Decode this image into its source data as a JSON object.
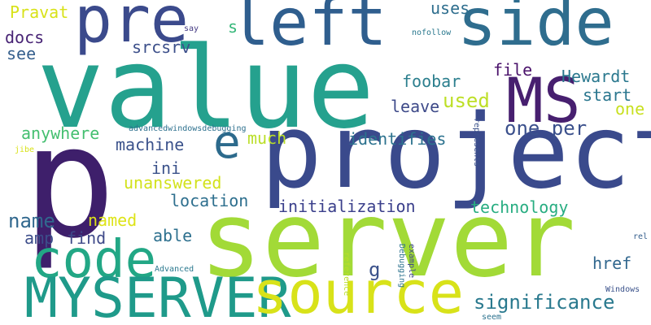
{
  "palette": {
    "teal": "#25a18e",
    "navy": "#3b3f8c",
    "blue": "#2c6a8c",
    "steel": "#32638d",
    "purple": "#471f6f",
    "green": "#4fc46a",
    "lime": "#9ddd33",
    "yellow": "#d8e219",
    "sea": "#1f9a8a"
  },
  "words": [
    {
      "text": "value",
      "color": "#25a18e"
    },
    {
      "text": "p",
      "color": "#3e1f6b"
    },
    {
      "text": "left",
      "color": "#2f5e8e"
    },
    {
      "text": "side",
      "color": "#2f6d8e"
    },
    {
      "text": "pre",
      "color": "#3b4a8c"
    },
    {
      "text": "project",
      "color": "#3a4a8c"
    },
    {
      "text": "server",
      "color": "#a2da37"
    },
    {
      "text": "code",
      "color": "#22a785"
    },
    {
      "text": "MYSERVER",
      "color": "#1f9a8a"
    },
    {
      "text": "source",
      "color": "#d8e219"
    },
    {
      "text": "MS",
      "color": "#471f6f"
    },
    {
      "text": "e",
      "color": "#2c6a8c"
    },
    {
      "text": "significance",
      "color": "#29798e"
    },
    {
      "text": "initialization",
      "color": "#3a3f8b"
    },
    {
      "text": "one per",
      "color": "#3b508c"
    },
    {
      "text": "technology",
      "color": "#27ad81"
    },
    {
      "text": "identifies",
      "color": "#2c728e"
    },
    {
      "text": "unanswered",
      "color": "#d2e21b"
    },
    {
      "text": "location",
      "color": "#2e6f8e"
    },
    {
      "text": "machine",
      "color": "#3b528b"
    },
    {
      "text": "used",
      "color": "#bddf26"
    },
    {
      "text": "foobar",
      "color": "#2c7f8e"
    },
    {
      "text": "Hewardt",
      "color": "#2a788e"
    },
    {
      "text": "start",
      "color": "#2a768e"
    },
    {
      "text": "leave",
      "color": "#3e4a89"
    },
    {
      "text": "one",
      "color": "#c8e020"
    },
    {
      "text": "file",
      "color": "#4a126b"
    },
    {
      "text": "anywhere",
      "color": "#44bf70"
    },
    {
      "text": "much",
      "color": "#bade28"
    },
    {
      "text": "ini",
      "color": "#3b528b"
    },
    {
      "text": "name",
      "color": "#31688e"
    },
    {
      "text": "named",
      "color": "#dde318"
    },
    {
      "text": "amp",
      "color": "#3c4d8a"
    },
    {
      "text": "find",
      "color": "#3e4989"
    },
    {
      "text": "able",
      "color": "#2d708e"
    },
    {
      "text": "href",
      "color": "#31678e"
    },
    {
      "text": "g",
      "color": "#3b528b"
    },
    {
      "text": "srcsrv",
      "color": "#3c4f8a"
    },
    {
      "text": "docs",
      "color": "#482475"
    },
    {
      "text": "see",
      "color": "#355f8d"
    },
    {
      "text": "Pravat",
      "color": "#d8e219"
    },
    {
      "text": "uses",
      "color": "#2e6e8e"
    },
    {
      "text": "s",
      "color": "#35b779"
    },
    {
      "text": "say",
      "color": "#443a83"
    },
    {
      "text": "nofollow",
      "color": "#2a788e"
    },
    {
      "text": "advancedwindowsdebugging",
      "color": "#2d708e"
    },
    {
      "text": "jibe",
      "color": "#d8e219"
    },
    {
      "text": "represents",
      "color": "#3b528b"
    },
    {
      "text": "reference",
      "color": "#bade28"
    },
    {
      "text": "Debugging",
      "color": "#2c728e"
    },
    {
      "text": "example",
      "color": "#3e4989"
    },
    {
      "text": "Advanced",
      "color": "#2a788e"
    },
    {
      "text": "Windows",
      "color": "#3b528b"
    },
    {
      "text": "seem",
      "color": "#2c728e"
    },
    {
      "text": "rel",
      "color": "#355f8d"
    }
  ]
}
